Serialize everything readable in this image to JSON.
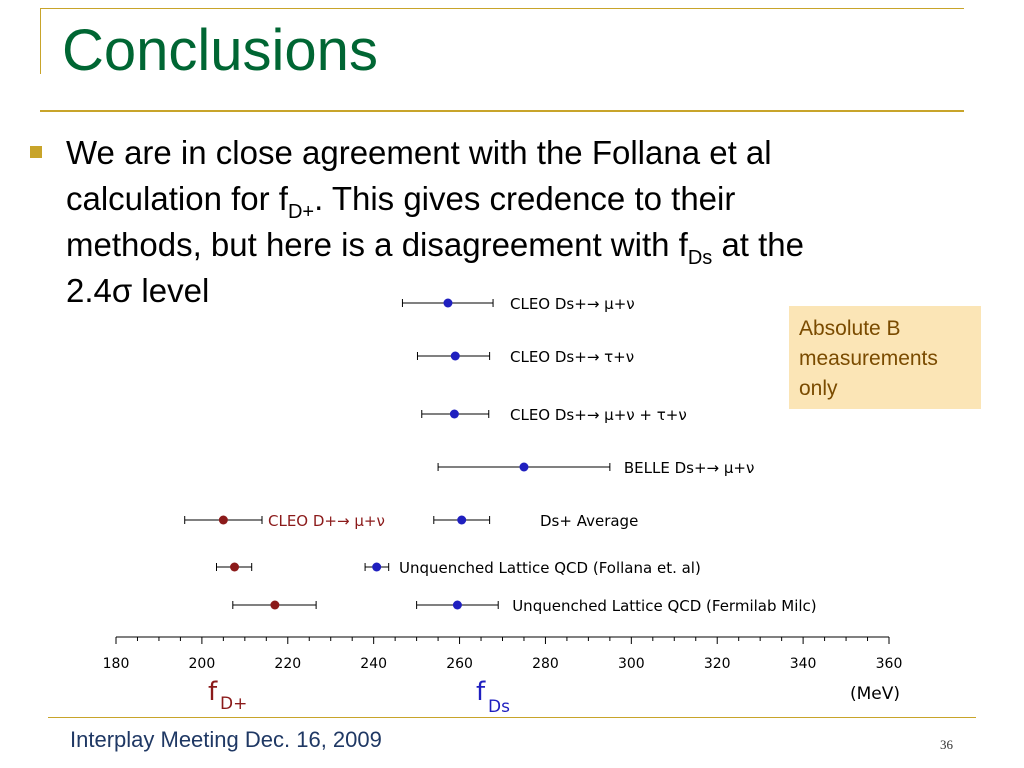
{
  "slide": {
    "title": "Conclusions",
    "bullet_lines": {
      "line1": "We are in close agreement with the Follana et al",
      "line2_pre": "calculation for f",
      "line2_sub": "D+",
      "line2_post": ". This gives credence to their",
      "line3_pre": "methods, but here is a disagreement with f",
      "line3_sub": "Ds",
      "line3_post": " at the",
      "line4": "2.4σ level"
    },
    "callout": "Absolute B measurements only",
    "footer": "Interplay Meeting Dec. 16, 2009",
    "page_number": "36"
  },
  "colors": {
    "title": "#006633",
    "accent_rule": "#c8a42a",
    "ds_series": "#1f1fbf",
    "dplus_series": "#8b1a1a",
    "callout_bg": "#fbe5b6"
  },
  "chart_data": {
    "type": "scatter",
    "subtype": "error-bar comparison",
    "xlabel_units": "(MeV)",
    "xlim": [
      180,
      360
    ],
    "xticks": [
      180,
      200,
      220,
      240,
      260,
      280,
      300,
      320,
      340,
      360
    ],
    "group_labels": {
      "dplus": "f",
      "dplus_sub": "D+",
      "ds": "f",
      "ds_sub": "Ds"
    },
    "rows": [
      {
        "label": "CLEO  Ds+→ μ+ν",
        "ds": {
          "value": 257.3,
          "lo": 246.7,
          "hi": 267.8
        }
      },
      {
        "label": "CLEO  Ds+→ τ+ν",
        "ds": {
          "value": 259.0,
          "lo": 250.2,
          "hi": 267.0
        }
      },
      {
        "label": "CLEO  Ds+→ μ+ν + τ+ν",
        "ds": {
          "value": 258.8,
          "lo": 251.2,
          "hi": 266.8
        }
      },
      {
        "label": "BELLE  Ds+→ μ+ν",
        "ds": {
          "value": 275.0,
          "lo": 255.0,
          "hi": 295.0
        }
      },
      {
        "label": "Ds+ Average",
        "ds": {
          "value": 260.5,
          "lo": 254.0,
          "hi": 267.0
        },
        "dplus_label": "CLEO  D+→ μ+ν",
        "dplus": {
          "value": 205.0,
          "lo": 196.0,
          "hi": 214.0
        }
      },
      {
        "label": "Unquenched Lattice QCD (Follana et. al)",
        "ds": {
          "value": 240.7,
          "lo": 238.0,
          "hi": 243.5
        },
        "dplus": {
          "value": 207.6,
          "lo": 203.4,
          "hi": 211.6
        }
      },
      {
        "label": "Unquenched Lattice QCD (Fermilab Milc)",
        "ds": {
          "value": 259.5,
          "lo": 250.0,
          "hi": 269.0
        },
        "dplus": {
          "value": 217.0,
          "lo": 207.2,
          "hi": 226.6
        }
      }
    ]
  }
}
